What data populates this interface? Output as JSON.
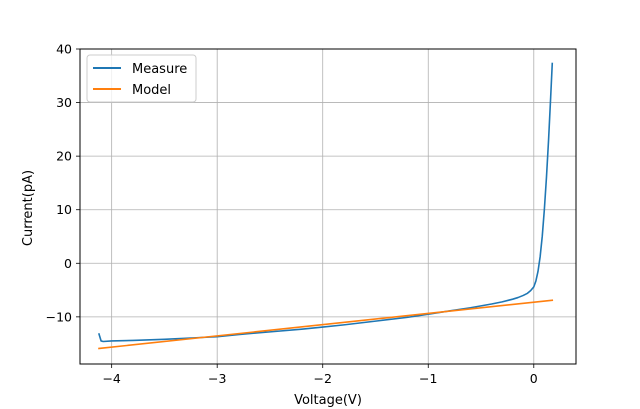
{
  "chart_data": {
    "type": "line",
    "title": "",
    "xlabel": "Voltage(V)",
    "ylabel": "Current(pA)",
    "xlim": [
      -4.3,
      0.4
    ],
    "ylim": [
      -18.8,
      40
    ],
    "grid": true,
    "legend_position": "top-left",
    "x_ticks": [
      {
        "value": -4,
        "label": "−4"
      },
      {
        "value": -3,
        "label": "−3"
      },
      {
        "value": -2,
        "label": "−2"
      },
      {
        "value": -1,
        "label": "−1"
      },
      {
        "value": 0,
        "label": "0"
      }
    ],
    "y_ticks": [
      {
        "value": -10,
        "label": "−10"
      },
      {
        "value": 0,
        "label": "0"
      },
      {
        "value": 10,
        "label": "10"
      },
      {
        "value": 20,
        "label": "20"
      },
      {
        "value": 30,
        "label": "30"
      },
      {
        "value": 40,
        "label": "40"
      }
    ],
    "series": [
      {
        "name": "Measure",
        "color": "#1f77b4",
        "x": [
          -4.12,
          -4.1,
          -4.08,
          -4.0,
          -3.8,
          -3.5,
          -3.2,
          -3.0,
          -2.8,
          -2.5,
          -2.2,
          -2.0,
          -1.8,
          -1.5,
          -1.2,
          -1.0,
          -0.8,
          -0.6,
          -0.4,
          -0.3,
          -0.2,
          -0.15,
          -0.1,
          -0.06,
          -0.03,
          0.0,
          0.02,
          0.04,
          0.06,
          0.08,
          0.1,
          0.12,
          0.14,
          0.16,
          0.175
        ],
        "y": [
          -13.2,
          -14.5,
          -14.6,
          -14.5,
          -14.4,
          -14.2,
          -13.9,
          -13.7,
          -13.3,
          -12.8,
          -12.3,
          -11.9,
          -11.5,
          -10.8,
          -10.1,
          -9.5,
          -8.9,
          -8.3,
          -7.6,
          -7.2,
          -6.7,
          -6.4,
          -6.0,
          -5.6,
          -5.1,
          -4.4,
          -3.3,
          -1.5,
          1.2,
          5.0,
          10.0,
          16.0,
          23.0,
          31.0,
          37.3
        ]
      },
      {
        "name": "Model",
        "color": "#ff7f0e",
        "x": [
          -4.12,
          0.175
        ],
        "y": [
          -15.9,
          -6.9
        ]
      }
    ]
  }
}
